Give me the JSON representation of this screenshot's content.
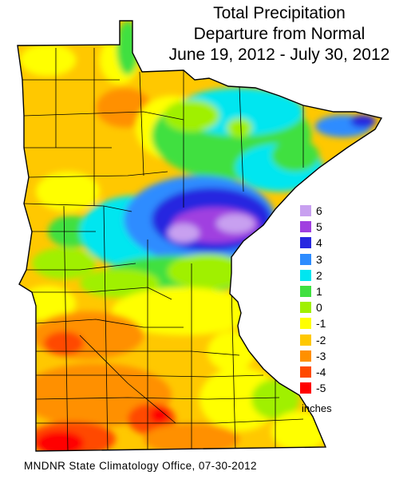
{
  "title": {
    "line1": "Total Precipitation",
    "line2": "Departure from Normal",
    "line3": "June 19, 2012 - July 30, 2012"
  },
  "legend": {
    "units": "inches",
    "classes": [
      {
        "label": "6",
        "color": "#c8a0f0"
      },
      {
        "label": "5",
        "color": "#a040e0"
      },
      {
        "label": "4",
        "color": "#2828e0"
      },
      {
        "label": "3",
        "color": "#2d8cff"
      },
      {
        "label": "2",
        "color": "#00e6f0"
      },
      {
        "label": "1",
        "color": "#40e040"
      },
      {
        "label": "0",
        "color": "#a0f000"
      },
      {
        "label": "-1",
        "color": "#ffff00"
      },
      {
        "label": "-2",
        "color": "#ffc800"
      },
      {
        "label": "-3",
        "color": "#ff9000"
      },
      {
        "label": "-4",
        "color": "#ff4a00"
      },
      {
        "label": "-5",
        "color": "#ff0000"
      }
    ]
  },
  "credit": "MNDNR State Climatology Office, 07-30-2012"
}
